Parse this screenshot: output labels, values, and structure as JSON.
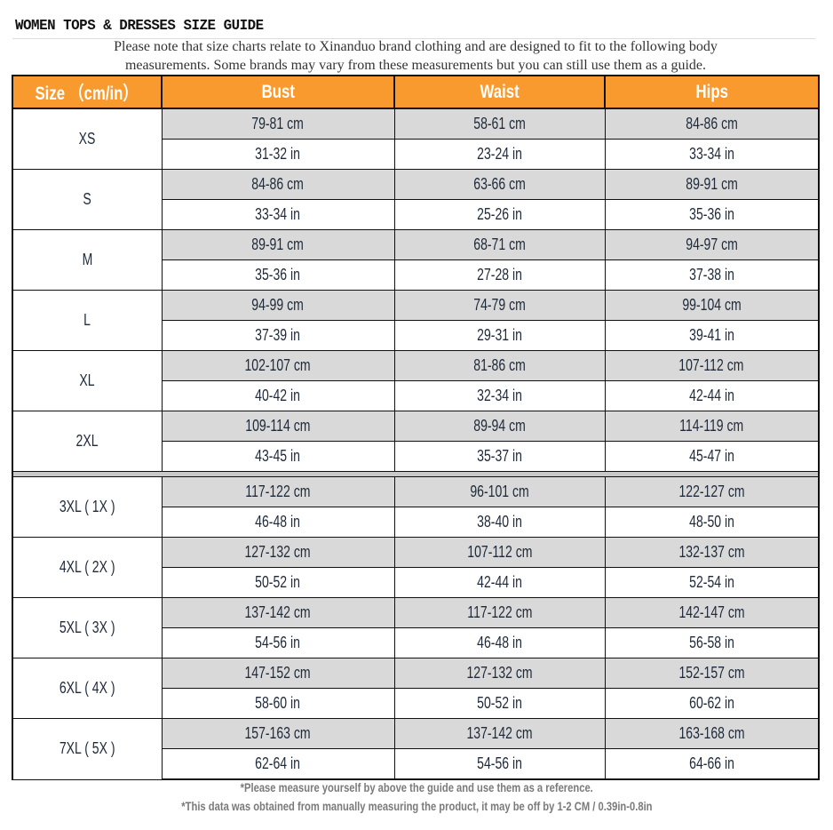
{
  "title": "WOMEN TOPS & DRESSES SIZE GUIDE",
  "note_line1": "Please note that size charts relate to  Xinanduo brand clothing and are designed to fit to the following body",
  "note_line2": "measurements. Some brands may vary from these measurements but you can still use them as a guide.",
  "colors": {
    "header_bg": "#f99a2e",
    "cm_row_bg": "#d9d9d9"
  },
  "headers": [
    "Size  （cm/in）",
    "Bust",
    "Waist",
    "Hips"
  ],
  "rows": [
    {
      "size": "XS",
      "cm": [
        "79-81 cm",
        "58-61 cm",
        "84-86 cm"
      ],
      "in": [
        "31-32 in",
        "23-24 in",
        "33-34 in"
      ]
    },
    {
      "size": "S",
      "cm": [
        "84-86 cm",
        "63-66 cm",
        "89-91 cm"
      ],
      "in": [
        "33-34 in",
        "25-26 in",
        "35-36 in"
      ]
    },
    {
      "size": "M",
      "cm": [
        "89-91 cm",
        "68-71 cm",
        "94-97 cm"
      ],
      "in": [
        "35-36 in",
        "27-28 in",
        "37-38 in"
      ]
    },
    {
      "size": "L",
      "cm": [
        "94-99 cm",
        "74-79 cm",
        "99-104 cm"
      ],
      "in": [
        "37-39 in",
        "29-31 in",
        "39-41 in"
      ]
    },
    {
      "size": "XL",
      "cm": [
        "102-107 cm",
        "81-86 cm",
        "107-112 cm"
      ],
      "in": [
        "40-42 in",
        "32-34 in",
        "42-44 in"
      ]
    },
    {
      "size": "2XL",
      "cm": [
        "109-114 cm",
        "89-94 cm",
        "114-119 cm"
      ],
      "in": [
        "43-45 in",
        "35-37 in",
        "45-47 in"
      ]
    },
    {
      "size": "3XL ( 1X )",
      "cm": [
        "117-122 cm",
        "96-101 cm",
        "122-127 cm"
      ],
      "in": [
        "46-48 in",
        "38-40 in",
        "48-50 in"
      ]
    },
    {
      "size": "4XL ( 2X )",
      "cm": [
        "127-132 cm",
        "107-112 cm",
        "132-137 cm"
      ],
      "in": [
        "50-52 in",
        "42-44 in",
        "52-54 in"
      ]
    },
    {
      "size": "5XL ( 3X )",
      "cm": [
        "137-142 cm",
        "117-122 cm",
        "142-147 cm"
      ],
      "in": [
        "54-56 in",
        "46-48 in",
        "56-58 in"
      ]
    },
    {
      "size": "6XL ( 4X )",
      "cm": [
        "147-152 cm",
        "127-132 cm",
        "152-157 cm"
      ],
      "in": [
        "58-60 in",
        "50-52 in",
        "60-62 in"
      ]
    },
    {
      "size": "7XL ( 5X )",
      "cm": [
        "157-163 cm",
        "137-142 cm",
        "163-168 cm"
      ],
      "in": [
        "62-64 in",
        "54-56 in",
        "64-66 in"
      ]
    }
  ],
  "footnotes": [
    "*Please measure yourself by above the guide and use them as a reference.",
    "*This data was obtained from manually measuring the product, it may be off by 1-2 CM / 0.39in-0.8in"
  ]
}
